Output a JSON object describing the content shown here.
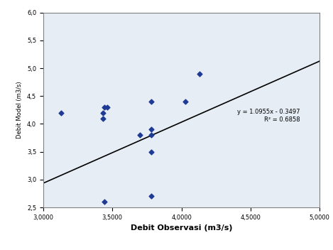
{
  "chart_data": {
    "type": "scatter",
    "x_label": "Debit Observasi (m3/s)",
    "y_label": "Debit Model (m3/s)",
    "x": [
      3.13,
      3.43,
      3.43,
      3.44,
      3.46,
      3.44,
      3.7,
      3.78,
      3.78,
      3.78,
      3.78,
      3.78,
      4.03,
      4.13
    ],
    "values": [
      4.2,
      4.2,
      4.1,
      4.3,
      4.3,
      2.6,
      3.8,
      4.4,
      3.9,
      3.8,
      3.5,
      2.7,
      4.4,
      4.9
    ],
    "color": "#1f3a93",
    "marker": "diamond",
    "trendline": {
      "slope": 1.0955,
      "intercept": -0.3497,
      "color": "#000000"
    },
    "annotations": [
      "y = 1.0955x - 0.3497",
      "R² = 0.6858"
    ],
    "xlim": [
      3.0,
      5.0
    ],
    "xticks": [
      {
        "value": 3.0,
        "label": "3,0000"
      },
      {
        "value": 3.5,
        "label": "3,5000"
      },
      {
        "value": 4.0,
        "label": "4,0000"
      },
      {
        "value": 4.5,
        "label": "4,5000"
      },
      {
        "value": 5.0,
        "label": "5,0000"
      }
    ],
    "ylim": [
      2.5,
      6.0
    ],
    "yticks": [
      {
        "value": 2.5,
        "label": "2,5"
      },
      {
        "value": 3.0,
        "label": "3,0"
      },
      {
        "value": 3.5,
        "label": "3,5"
      },
      {
        "value": 4.0,
        "label": "4,0"
      },
      {
        "value": 4.5,
        "label": "4,5"
      },
      {
        "value": 5.0,
        "label": "5,0"
      },
      {
        "value": 5.5,
        "label": "5,5"
      },
      {
        "value": 6.0,
        "label": "6,0"
      }
    ],
    "grid": false
  }
}
